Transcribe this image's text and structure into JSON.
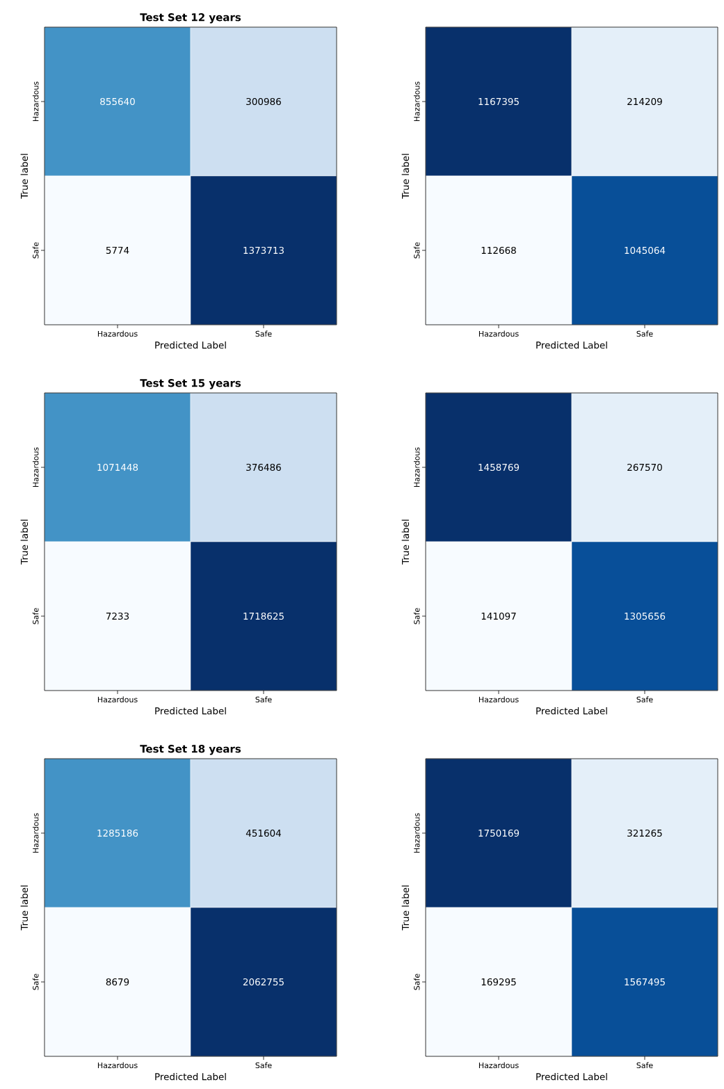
{
  "chart_data": [
    {
      "type": "heatmap",
      "title": "Test Set 12 years",
      "xlabel": "Predicted Label",
      "ylabel": "True label",
      "categories": [
        "Hazardous",
        "Safe"
      ],
      "y_categories": [
        "Hazardous",
        "Safe"
      ],
      "cells": [
        [
          855640,
          300986
        ],
        [
          5774,
          1373713
        ]
      ],
      "data_labels": true
    },
    {
      "type": "heatmap",
      "xlabel": "Predicted Label",
      "ylabel": "True label",
      "categories": [
        "Hazardous",
        "Safe"
      ],
      "y_categories": [
        "Hazardous",
        "Safe"
      ],
      "cells": [
        [
          1167395,
          214209
        ],
        [
          112668,
          1045064
        ]
      ],
      "data_labels": true
    },
    {
      "type": "heatmap",
      "title": "Test Set 15 years",
      "xlabel": "Predicted Label",
      "ylabel": "True label",
      "categories": [
        "Hazardous",
        "Safe"
      ],
      "y_categories": [
        "Hazardous",
        "Safe"
      ],
      "cells": [
        [
          1071448,
          376486
        ],
        [
          7233,
          1718625
        ]
      ],
      "data_labels": true
    },
    {
      "type": "heatmap",
      "xlabel": "Predicted Label",
      "ylabel": "True label",
      "categories": [
        "Hazardous",
        "Safe"
      ],
      "y_categories": [
        "Hazardous",
        "Safe"
      ],
      "cells": [
        [
          1458769,
          267570
        ],
        [
          141097,
          1305656
        ]
      ],
      "data_labels": true
    },
    {
      "type": "heatmap",
      "title": "Test Set 18 years",
      "xlabel": "Predicted Label",
      "ylabel": "True label",
      "categories": [
        "Hazardous",
        "Safe"
      ],
      "y_categories": [
        "Hazardous",
        "Safe"
      ],
      "cells": [
        [
          1285186,
          451604
        ],
        [
          8679,
          2062755
        ]
      ],
      "data_labels": true
    },
    {
      "type": "heatmap",
      "xlabel": "Predicted Label",
      "ylabel": "True label",
      "categories": [
        "Hazardous",
        "Safe"
      ],
      "y_categories": [
        "Hazardous",
        "Safe"
      ],
      "cells": [
        [
          1750169,
          321265
        ],
        [
          169295,
          1567495
        ]
      ],
      "data_labels": true
    }
  ]
}
